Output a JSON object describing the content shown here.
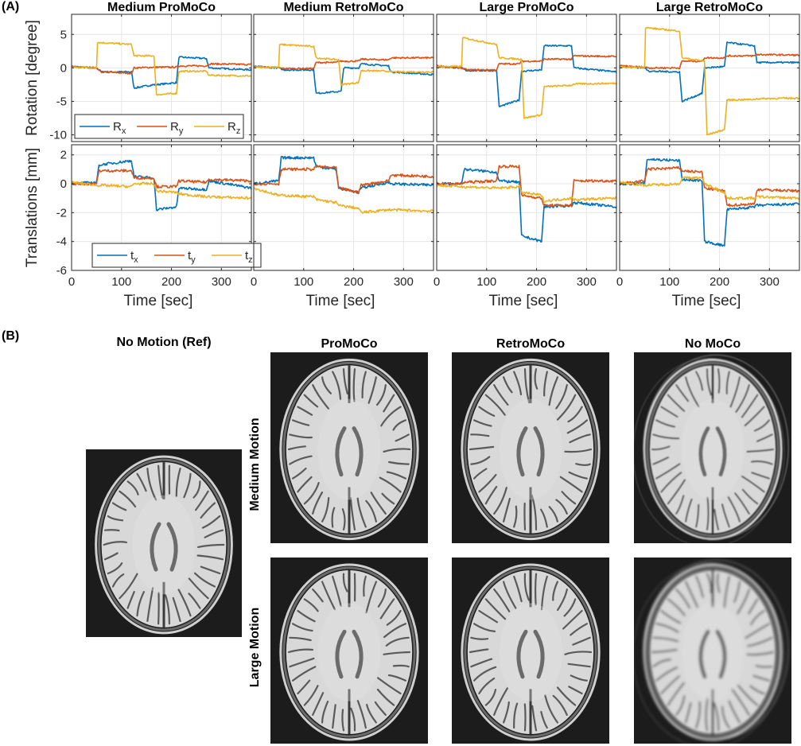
{
  "panel_a_label": "(A)",
  "panel_b_label": "(B)",
  "chart_data": [
    {
      "type": "line",
      "row": "rotation",
      "title": "Medium ProMoCo",
      "ylabel": "Rotation [degree]",
      "xlabel": "",
      "xlim": [
        0,
        360
      ],
      "ylim": [
        -11,
        8
      ],
      "yticks": [
        5,
        0,
        -5,
        -10
      ],
      "xticks": [],
      "grid": true,
      "legend": {
        "placement": "bottom-left",
        "entries": [
          "R_x",
          "R_y",
          "R_z"
        ]
      },
      "series": [
        {
          "name": "R_x",
          "color": "#0072BD",
          "x": [
            0,
            50,
            60,
            120,
            125,
            165,
            170,
            210,
            215,
            270,
            275,
            360
          ],
          "y": [
            0.2,
            0,
            -0.6,
            -0.6,
            -3.0,
            -2.5,
            -2.5,
            -2.2,
            1.6,
            1.4,
            0,
            -0.3
          ]
        },
        {
          "name": "R_y",
          "color": "#D95319",
          "x": [
            0,
            50,
            60,
            120,
            125,
            165,
            170,
            210,
            215,
            270,
            275,
            360
          ],
          "y": [
            0.2,
            -0.1,
            -0.6,
            -0.8,
            0,
            0.1,
            0.1,
            0.1,
            0.3,
            0.3,
            0.6,
            0.5
          ]
        },
        {
          "name": "R_z",
          "color": "#EDB120",
          "x": [
            0,
            50,
            52,
            120,
            125,
            165,
            170,
            210,
            215,
            270,
            275,
            360
          ],
          "y": [
            0.1,
            0.1,
            3.8,
            3.5,
            1.8,
            1.8,
            -4.0,
            -3.8,
            -0.5,
            -0.5,
            -1.1,
            -1.2
          ]
        }
      ]
    },
    {
      "type": "line",
      "row": "rotation",
      "title": "Medium RetroMoCo",
      "xlim": [
        0,
        360
      ],
      "ylim": [
        -11,
        8
      ],
      "series": [
        {
          "name": "R_x",
          "color": "#0072BD",
          "x": [
            0,
            50,
            60,
            120,
            125,
            175,
            180,
            210,
            215,
            270,
            275,
            360
          ],
          "y": [
            0.2,
            0,
            -0.3,
            -0.3,
            -3.8,
            -3.5,
            0,
            0,
            0.6,
            0.3,
            -0.6,
            -1.0
          ]
        },
        {
          "name": "R_y",
          "color": "#D95319",
          "x": [
            0,
            50,
            60,
            120,
            125,
            165,
            170,
            210,
            215,
            270,
            275,
            360
          ],
          "y": [
            0.2,
            0,
            -0.1,
            -0.1,
            0.8,
            0.8,
            1.0,
            1.0,
            1.3,
            1.2,
            1.5,
            1.5
          ]
        },
        {
          "name": "R_z",
          "color": "#EDB120",
          "x": [
            0,
            50,
            52,
            120,
            125,
            170,
            175,
            210,
            215,
            270,
            275,
            360
          ],
          "y": [
            0.1,
            0.1,
            3.5,
            3.2,
            1.5,
            1.2,
            -2.5,
            -2.2,
            -0.4,
            -0.5,
            -0.6,
            -0.6
          ]
        }
      ]
    },
    {
      "type": "line",
      "row": "rotation",
      "title": "Large ProMoCo",
      "xlim": [
        0,
        360
      ],
      "ylim": [
        -11,
        8
      ],
      "series": [
        {
          "name": "R_x",
          "color": "#0072BD",
          "x": [
            0,
            50,
            60,
            120,
            125,
            165,
            170,
            210,
            215,
            270,
            275,
            360
          ],
          "y": [
            0.2,
            0,
            -0.4,
            -0.4,
            -5.8,
            -4.8,
            -0.5,
            -0.3,
            3.3,
            3.3,
            0,
            -0.6
          ]
        },
        {
          "name": "R_y",
          "color": "#D95319",
          "x": [
            0,
            50,
            60,
            120,
            125,
            165,
            170,
            210,
            215,
            270,
            275,
            360
          ],
          "y": [
            0.3,
            0,
            -0.3,
            -0.3,
            0.6,
            0.6,
            1.0,
            1.0,
            1.3,
            1.3,
            1.8,
            1.7
          ]
        },
        {
          "name": "R_z",
          "color": "#EDB120",
          "x": [
            0,
            50,
            52,
            120,
            125,
            170,
            175,
            210,
            215,
            270,
            275,
            360
          ],
          "y": [
            0.2,
            0.2,
            4.5,
            3.5,
            1.5,
            1.3,
            -7.5,
            -7.0,
            -2.8,
            -2.6,
            -2.4,
            -2.3
          ]
        }
      ]
    },
    {
      "type": "line",
      "row": "rotation",
      "title": "Large RetroMoCo",
      "xlim": [
        0,
        360
      ],
      "ylim": [
        -11,
        8
      ],
      "series": [
        {
          "name": "R_x",
          "color": "#0072BD",
          "x": [
            0,
            50,
            60,
            120,
            125,
            165,
            170,
            210,
            215,
            270,
            275,
            360
          ],
          "y": [
            0.2,
            0,
            -0.5,
            -0.6,
            -5.0,
            -3.8,
            0,
            0.2,
            3.8,
            3.3,
            0.8,
            0.8
          ]
        },
        {
          "name": "R_y",
          "color": "#D95319",
          "x": [
            0,
            50,
            60,
            120,
            125,
            165,
            170,
            210,
            215,
            270,
            275,
            360
          ],
          "y": [
            0.3,
            0.1,
            0,
            0,
            1.0,
            1.0,
            1.5,
            1.5,
            1.8,
            1.8,
            2.0,
            1.9
          ]
        },
        {
          "name": "R_z",
          "color": "#EDB120",
          "x": [
            0,
            50,
            52,
            120,
            125,
            170,
            175,
            210,
            215,
            270,
            275,
            360
          ],
          "y": [
            0.1,
            0.1,
            6.0,
            5.5,
            1.5,
            1.0,
            -10.0,
            -9.2,
            -4.8,
            -4.7,
            -4.6,
            -4.5
          ]
        }
      ]
    },
    {
      "type": "line",
      "row": "translation",
      "title": "",
      "ylabel": "Translations [mm]",
      "xlabel": "Time [sec]",
      "xlim": [
        0,
        360
      ],
      "ylim": [
        -6,
        2.7
      ],
      "yticks": [
        2,
        0,
        -2,
        -4,
        -6
      ],
      "xticks": [
        0,
        100,
        200,
        300
      ],
      "grid": true,
      "legend": {
        "placement": "bottom-right",
        "entries": [
          "t_x",
          "t_y",
          "t_z"
        ]
      },
      "series": [
        {
          "name": "t_x",
          "color": "#0072BD",
          "x": [
            0,
            50,
            55,
            120,
            125,
            165,
            170,
            210,
            215,
            270,
            275,
            360
          ],
          "y": [
            0,
            0.1,
            1.3,
            1.6,
            0.5,
            0.4,
            -1.8,
            -1.6,
            -0.3,
            -0.4,
            0.2,
            -0.3
          ]
        },
        {
          "name": "t_y",
          "color": "#D95319",
          "x": [
            0,
            50,
            55,
            120,
            125,
            165,
            170,
            210,
            215,
            270,
            275,
            360
          ],
          "y": [
            0,
            0,
            0.9,
            0.9,
            0.4,
            0.4,
            -0.2,
            -0.2,
            0.2,
            0.1,
            0.3,
            0.2
          ]
        },
        {
          "name": "t_z",
          "color": "#EDB120",
          "x": [
            0,
            50,
            120,
            125,
            165,
            170,
            210,
            215,
            270,
            275,
            360
          ],
          "y": [
            0.1,
            -0.1,
            -0.2,
            0,
            0,
            -0.5,
            -0.6,
            -0.7,
            -0.9,
            -0.9,
            -1.0
          ]
        }
      ]
    },
    {
      "type": "line",
      "row": "translation",
      "title": "",
      "xlabel": "Time [sec]",
      "xlim": [
        0,
        360
      ],
      "ylim": [
        -6,
        2.7
      ],
      "xticks": [
        0,
        100,
        200,
        300
      ],
      "series": [
        {
          "name": "t_x",
          "color": "#0072BD",
          "x": [
            0,
            50,
            55,
            120,
            125,
            165,
            170,
            210,
            215,
            270,
            275,
            360
          ],
          "y": [
            0,
            0.2,
            1.8,
            1.8,
            1.2,
            1.0,
            -0.3,
            -0.6,
            -0.3,
            0.1,
            0,
            -0.1
          ]
        },
        {
          "name": "t_y",
          "color": "#D95319",
          "x": [
            0,
            50,
            55,
            120,
            125,
            165,
            170,
            210,
            215,
            270,
            275,
            360
          ],
          "y": [
            0,
            0,
            1.0,
            1.0,
            1.2,
            1.1,
            -0.3,
            -0.6,
            -0.1,
            0.2,
            0.6,
            0.5
          ]
        },
        {
          "name": "t_z",
          "color": "#EDB120",
          "x": [
            0,
            50,
            120,
            125,
            165,
            170,
            210,
            215,
            270,
            275,
            360
          ],
          "y": [
            -0.3,
            -0.8,
            -0.9,
            -1.1,
            -1.3,
            -1.5,
            -1.7,
            -2.0,
            -1.8,
            -1.8,
            -1.9
          ]
        }
      ]
    },
    {
      "type": "line",
      "row": "translation",
      "title": "",
      "xlabel": "Time [sec]",
      "xlim": [
        0,
        360
      ],
      "ylim": [
        -6,
        2.7
      ],
      "xticks": [
        0,
        100,
        200,
        300
      ],
      "series": [
        {
          "name": "t_x",
          "color": "#0072BD",
          "x": [
            0,
            50,
            55,
            120,
            125,
            165,
            170,
            210,
            215,
            270,
            275,
            360
          ],
          "y": [
            0,
            0,
            1.0,
            0.8,
            0.2,
            0.1,
            -3.6,
            -4.0,
            -1.6,
            -1.5,
            -1.3,
            -1.6
          ]
        },
        {
          "name": "t_y",
          "color": "#D95319",
          "x": [
            0,
            50,
            55,
            120,
            125,
            165,
            170,
            210,
            215,
            270,
            275,
            360
          ],
          "y": [
            0,
            0,
            0.1,
            0.2,
            1.2,
            1.2,
            -0.8,
            -1.0,
            -1.5,
            -1.5,
            0.2,
            0.2
          ]
        },
        {
          "name": "t_z",
          "color": "#EDB120",
          "x": [
            0,
            50,
            120,
            125,
            165,
            170,
            210,
            215,
            270,
            275,
            360
          ],
          "y": [
            -0.1,
            -0.2,
            -0.3,
            -0.3,
            -0.2,
            -0.6,
            -0.8,
            -1.2,
            -1.0,
            -1.1,
            -1.0
          ]
        }
      ]
    },
    {
      "type": "line",
      "row": "translation",
      "title": "",
      "xlabel": "Time [sec]",
      "xlim": [
        0,
        360
      ],
      "ylim": [
        -6,
        2.7
      ],
      "xticks": [
        0,
        100,
        200,
        300
      ],
      "series": [
        {
          "name": "t_x",
          "color": "#0072BD",
          "x": [
            0,
            50,
            55,
            120,
            125,
            165,
            170,
            210,
            215,
            270,
            275,
            360
          ],
          "y": [
            0,
            0,
            1.7,
            1.6,
            0.3,
            0.2,
            -4.0,
            -4.3,
            -1.8,
            -1.6,
            -1.5,
            -1.4
          ]
        },
        {
          "name": "t_y",
          "color": "#D95319",
          "x": [
            0,
            50,
            55,
            120,
            125,
            165,
            170,
            210,
            215,
            270,
            275,
            360
          ],
          "y": [
            0,
            0.2,
            1.0,
            1.1,
            0.9,
            0.8,
            -0.3,
            -0.5,
            -1.5,
            -1.4,
            -0.4,
            -0.5
          ]
        },
        {
          "name": "t_z",
          "color": "#EDB120",
          "x": [
            0,
            50,
            120,
            125,
            165,
            170,
            210,
            215,
            270,
            275,
            360
          ],
          "y": [
            0.1,
            -0.1,
            0,
            0.4,
            0.4,
            0,
            -0.6,
            -1.0,
            -1.0,
            -0.9,
            -1.0
          ]
        }
      ]
    }
  ],
  "images": {
    "ref_title": "No Motion (Ref)",
    "col_titles": [
      "ProMoCo",
      "RetroMoCo",
      "No MoCo"
    ],
    "row_titles": [
      "Medium Motion",
      "Large Motion"
    ],
    "background_color": "#1c1c1c"
  }
}
